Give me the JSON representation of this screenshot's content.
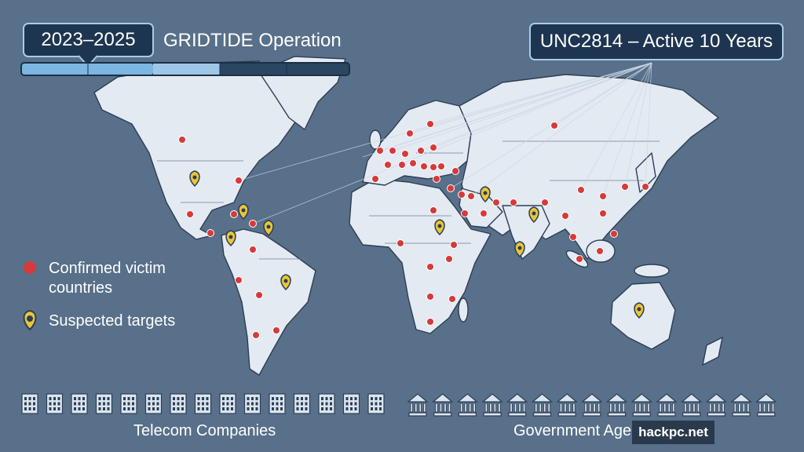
{
  "header": {
    "period": "2023–2025",
    "title": "GRIDTIDE Operation",
    "badge": "UNC2814 – Active 10 Years"
  },
  "legend": {
    "items": [
      "Confirmed victim countries",
      "Suspected targets"
    ]
  },
  "footer": {
    "left": "Telecom Companies",
    "right": "Government Agencies"
  },
  "watermark": "hackpc.net"
}
